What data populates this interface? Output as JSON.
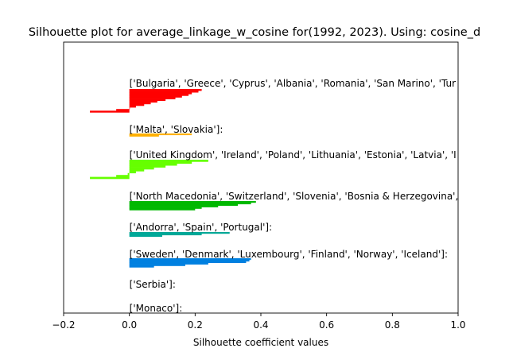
{
  "chart_data": {
    "type": "bar",
    "orientation": "horizontal",
    "title": "Silhouette plot for average_linkage_w_cosine for(1992, 2023). Using: cosine_d",
    "xlabel": "Silhouette coefficient values",
    "ylabel": "",
    "xlim": [
      -0.2,
      1.0
    ],
    "xticks": [
      "−0.2",
      "0.0",
      "0.2",
      "0.4",
      "0.6",
      "0.8",
      "1.0"
    ],
    "yticks": [],
    "grid": false,
    "clusters": [
      {
        "label": "['Bulgaria', 'Greece', 'Cyprus', 'Albania', 'Romania', 'San Marino', 'Tur",
        "color": "#ff0000",
        "values": [
          0.22,
          0.21,
          0.19,
          0.18,
          0.16,
          0.14,
          0.11,
          0.085,
          0.065,
          0.045,
          0.02,
          0.0,
          -0.04,
          -0.12
        ]
      },
      {
        "label": "['Malta', 'Slovakia']:",
        "color": "#ffb000",
        "values": [
          0.19,
          0.09
        ]
      },
      {
        "label": "['United Kingdom', 'Ireland', 'Poland', 'Lithuania', 'Estonia', 'Latvia', 'I",
        "color": "#66ff00",
        "values": [
          0.24,
          0.19,
          0.145,
          0.11,
          0.075,
          0.045,
          0.02,
          -0.005,
          -0.04,
          -0.12
        ]
      },
      {
        "label": "['North Macedonia', 'Switzerland', 'Slovenia', 'Bosnia & Herzegovina',",
        "color": "#00b800",
        "values": [
          0.385,
          0.37,
          0.33,
          0.27,
          0.22,
          0.2
        ]
      },
      {
        "label": "['Andorra', 'Spain', 'Portugal']:",
        "color": "#00a898",
        "values": [
          0.305,
          0.22,
          0.1
        ]
      },
      {
        "label": "['Sweden', 'Denmark', 'Luxembourg', 'Finland', 'Norway', 'Iceland']:",
        "color": "#0080e0",
        "values": [
          0.37,
          0.365,
          0.355,
          0.24,
          0.17,
          0.075
        ]
      },
      {
        "label": "['Serbia']:",
        "color": "#8800ff",
        "values": [
          0.0
        ]
      },
      {
        "label": "['Monaco']:",
        "color": "#ff00ff",
        "values": [
          0.0
        ]
      }
    ]
  }
}
